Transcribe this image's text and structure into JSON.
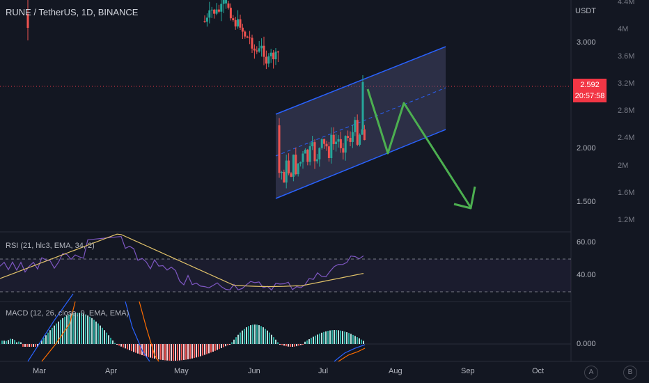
{
  "header": {
    "symbol_title": "RUNE / TetherUS, 1D, BINANCE"
  },
  "price_axis": {
    "currency_label": "USDT",
    "ticks": [
      "3.000",
      "2.000",
      "1.500"
    ],
    "current_price": "2.592",
    "countdown": "20:57:58"
  },
  "volume_axis": {
    "ticks": [
      "4.4M",
      "4M",
      "3.6M",
      "3.2M",
      "2.8M",
      "2.4M",
      "2M",
      "1.6M",
      "1.2M"
    ]
  },
  "rsi_pane": {
    "label": "RSI (21, hlc3, EMA, 34, 2)",
    "ticks": [
      "60.00",
      "40.00"
    ]
  },
  "macd_pane": {
    "label": "MACD (12, 26, close, 9, EMA, EMA)",
    "ticks": [
      "0.000"
    ]
  },
  "time_axis": {
    "labels": [
      "Mar",
      "Apr",
      "May",
      "Jun",
      "Jul",
      "Aug",
      "Sep",
      "Oct"
    ]
  },
  "scale_buttons": {
    "auto_label": "A",
    "b_label": "B"
  },
  "colors": {
    "background": "#131722",
    "up_candle": "#26a69a",
    "down_candle": "#ef5350",
    "channel_line": "#2962ff",
    "projection_arrow": "#4caf50",
    "rsi_line": "#7e57c2",
    "rsi_ma": "#e2c36a",
    "price_tag": "#f23645"
  }
}
